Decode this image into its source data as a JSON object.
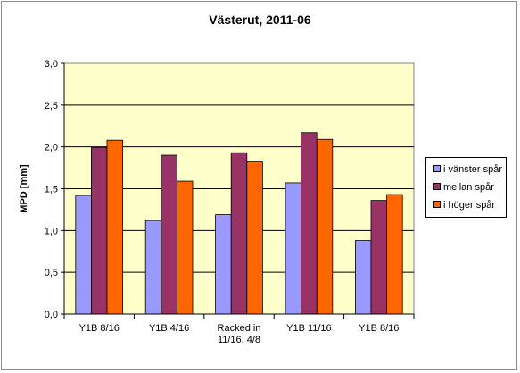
{
  "chart_data": {
    "type": "bar",
    "title": "Västerut, 2011-06",
    "ylabel": "MPD [mm]",
    "xlabel": "",
    "ylim": [
      0,
      3.0
    ],
    "yticks": [
      "0,0",
      "0,5",
      "1,0",
      "1,5",
      "2,0",
      "2,5",
      "3,0"
    ],
    "categories": [
      "Y1B 8/16",
      "Y1B 4/16",
      "Racked in 11/16, 4/8",
      "Y1B 11/16",
      "Y1B 8/16"
    ],
    "category_lines": [
      [
        "Y1B 8/16"
      ],
      [
        "Y1B 4/16"
      ],
      [
        "Racked in",
        "11/16, 4/8"
      ],
      [
        "Y1B 11/16"
      ],
      [
        "Y1B 8/16"
      ]
    ],
    "series": [
      {
        "name": "i vänster spår",
        "color": "#9999ff",
        "values": [
          1.42,
          1.12,
          1.19,
          1.57,
          0.88
        ]
      },
      {
        "name": "mellan spår",
        "color": "#993366",
        "values": [
          1.99,
          1.9,
          1.93,
          2.17,
          1.36
        ]
      },
      {
        "name": "i höger spår",
        "color": "#ff6600",
        "values": [
          2.08,
          1.59,
          1.83,
          2.09,
          1.43
        ]
      }
    ],
    "plot_background": "#ffffcc",
    "grid": true,
    "legend_position": "right"
  }
}
